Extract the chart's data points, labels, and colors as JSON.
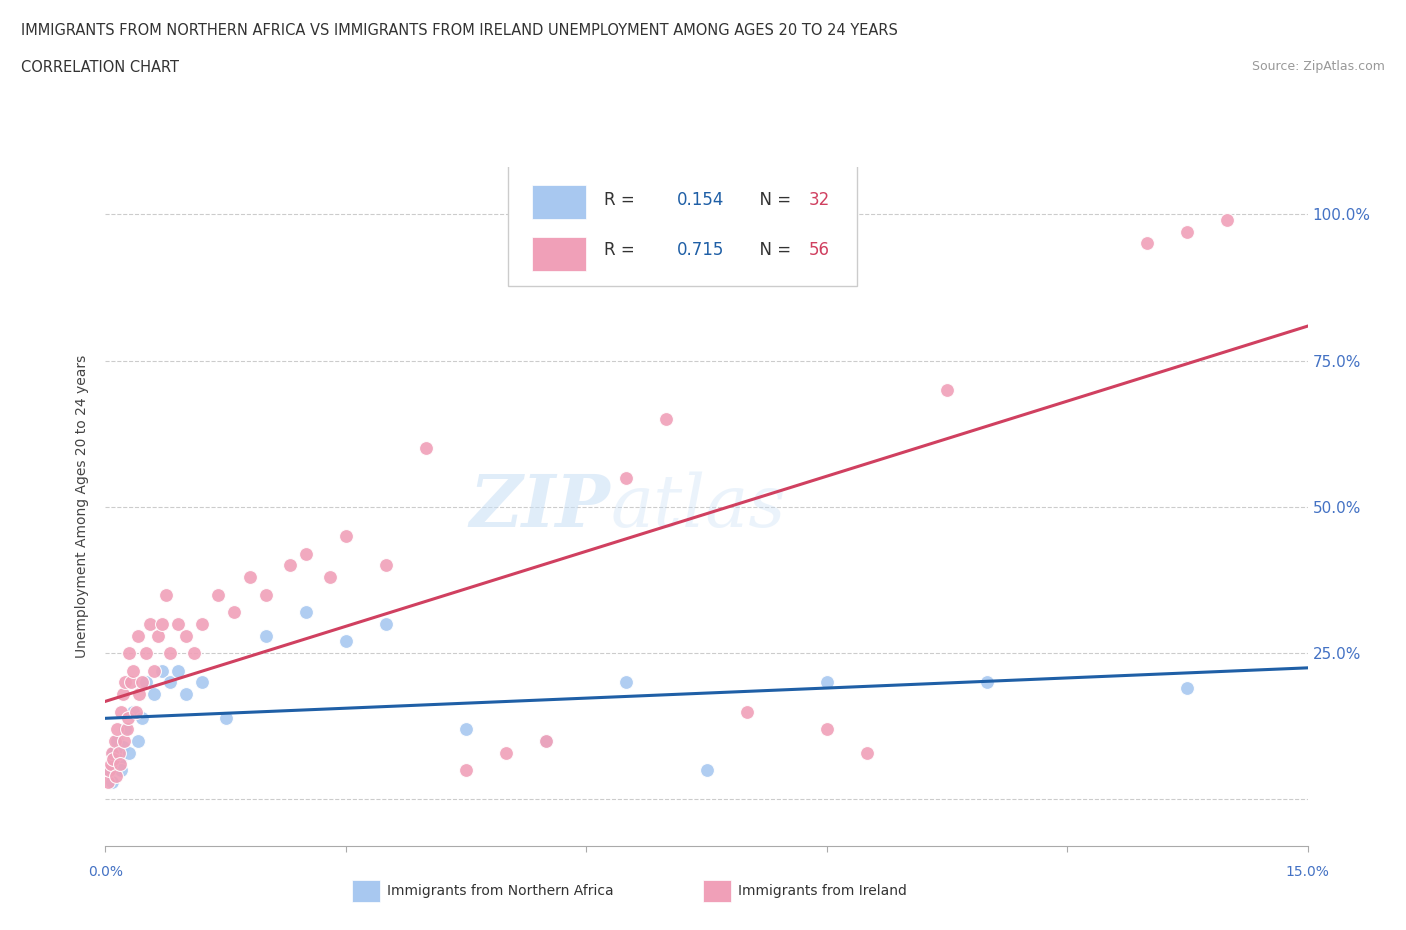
{
  "title_line1": "IMMIGRANTS FROM NORTHERN AFRICA VS IMMIGRANTS FROM IRELAND UNEMPLOYMENT AMONG AGES 20 TO 24 YEARS",
  "title_line2": "CORRELATION CHART",
  "source_text": "Source: ZipAtlas.com",
  "ylabel": "Unemployment Among Ages 20 to 24 years",
  "xmin": 0.0,
  "xmax": 15.0,
  "ymin": -8.0,
  "ymax": 108.0,
  "yticks": [
    0,
    25,
    50,
    75,
    100
  ],
  "watermark_zip": "ZIP",
  "watermark_atlas": "atlas",
  "series_blue": {
    "label": "Immigrants from Northern Africa",
    "R": "0.154",
    "N": "32",
    "color": "#a8c8f0",
    "trend_color": "#1f5fa6",
    "x": [
      0.05,
      0.08,
      0.1,
      0.12,
      0.15,
      0.18,
      0.2,
      0.22,
      0.25,
      0.3,
      0.35,
      0.4,
      0.45,
      0.5,
      0.6,
      0.7,
      0.8,
      0.9,
      1.0,
      1.2,
      1.5,
      2.0,
      2.5,
      3.0,
      3.5,
      4.5,
      5.5,
      6.5,
      7.5,
      9.0,
      11.0,
      13.5
    ],
    "y": [
      5,
      3,
      8,
      6,
      10,
      7,
      5,
      9,
      12,
      8,
      15,
      10,
      14,
      20,
      18,
      22,
      20,
      22,
      18,
      20,
      14,
      28,
      32,
      27,
      30,
      12,
      10,
      20,
      5,
      20,
      20,
      19
    ]
  },
  "series_pink": {
    "label": "Immigrants from Ireland",
    "R": "0.715",
    "N": "56",
    "color": "#f0a0b8",
    "trend_color": "#d04060",
    "x": [
      0.03,
      0.05,
      0.07,
      0.08,
      0.1,
      0.12,
      0.13,
      0.15,
      0.17,
      0.18,
      0.2,
      0.22,
      0.23,
      0.25,
      0.27,
      0.28,
      0.3,
      0.32,
      0.35,
      0.38,
      0.4,
      0.42,
      0.45,
      0.5,
      0.55,
      0.6,
      0.65,
      0.7,
      0.75,
      0.8,
      0.9,
      1.0,
      1.1,
      1.2,
      1.4,
      1.6,
      1.8,
      2.0,
      2.3,
      2.5,
      2.8,
      3.0,
      3.5,
      4.0,
      4.5,
      5.0,
      5.5,
      6.5,
      7.0,
      8.0,
      9.0,
      9.5,
      10.5,
      13.0,
      13.5,
      14.0
    ],
    "y": [
      3,
      5,
      6,
      8,
      7,
      10,
      4,
      12,
      8,
      6,
      15,
      18,
      10,
      20,
      12,
      14,
      25,
      20,
      22,
      15,
      28,
      18,
      20,
      25,
      30,
      22,
      28,
      30,
      35,
      25,
      30,
      28,
      25,
      30,
      35,
      32,
      38,
      35,
      40,
      42,
      38,
      45,
      40,
      60,
      5,
      8,
      10,
      55,
      65,
      15,
      12,
      8,
      70,
      95,
      97,
      99
    ]
  },
  "legend_blue_R": "0.154",
  "legend_blue_N": "32",
  "legend_pink_R": "0.715",
  "legend_pink_N": "56",
  "r_text_color": "#1f5fa6",
  "n_text_color": "#d04060",
  "background_color": "#ffffff",
  "grid_color": "#cccccc",
  "axis_label_color": "#4472c4",
  "right_tick_color": "#4472c4",
  "title_color": "#333333",
  "ylabel_color": "#444444"
}
